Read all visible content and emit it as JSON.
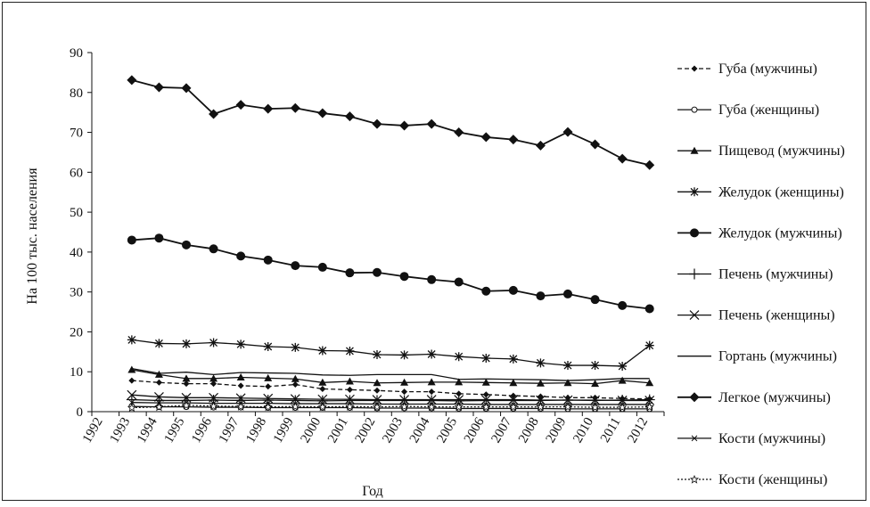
{
  "chart_data": {
    "type": "line",
    "xlabel": "Год",
    "ylabel": "На 100 тыс. населения",
    "ylim": [
      0,
      90
    ],
    "yticks": [
      0,
      10,
      20,
      30,
      40,
      50,
      60,
      70,
      80,
      90
    ],
    "xticks": [
      "1992",
      "1993",
      "1994",
      "1995",
      "1996",
      "1997",
      "1998",
      "1999",
      "2000",
      "2001",
      "2002",
      "2003",
      "2004",
      "2005",
      "2006",
      "2007",
      "2008",
      "2009",
      "2010",
      "2011",
      "2012"
    ],
    "x": [
      1993,
      1994,
      1995,
      1996,
      1997,
      1998,
      1999,
      2000,
      2001,
      2002,
      2003,
      2004,
      2005,
      2006,
      2007,
      2008,
      2009,
      2010,
      2011,
      2012
    ],
    "grid": false,
    "legend_position": "right",
    "series": [
      {
        "name": "Губа (мужчины)",
        "marker": "diamond-small",
        "dash": "dashed",
        "values": [
          7.8,
          7.3,
          7.0,
          7.0,
          6.5,
          6.3,
          6.8,
          5.7,
          5.5,
          5.3,
          5.0,
          5.0,
          4.5,
          4.3,
          4.0,
          3.8,
          3.5,
          3.5,
          3.3,
          3.2
        ]
      },
      {
        "name": "Губа (женщины)",
        "marker": "circle-open",
        "dash": "solid",
        "values": [
          1.3,
          1.2,
          1.2,
          1.1,
          1.1,
          1.0,
          1.0,
          1.0,
          1.0,
          0.9,
          0.9,
          0.9,
          0.8,
          0.8,
          0.8,
          0.8,
          0.7,
          0.7,
          0.7,
          0.7
        ]
      },
      {
        "name": "Пищевод (мужчины)",
        "marker": "triangle",
        "dash": "solid",
        "values": [
          10.5,
          9.3,
          8.3,
          8.3,
          8.6,
          8.4,
          8.2,
          7.3,
          7.6,
          7.2,
          7.3,
          7.4,
          7.4,
          7.3,
          7.2,
          7.1,
          7.2,
          7.0,
          7.8,
          7.2
        ]
      },
      {
        "name": "Желудок (женщины)",
        "marker": "star",
        "dash": "solid",
        "values": [
          18.0,
          17.1,
          17.0,
          17.3,
          16.9,
          16.3,
          16.1,
          15.3,
          15.2,
          14.3,
          14.2,
          14.4,
          13.8,
          13.4,
          13.2,
          12.2,
          11.6,
          11.6,
          11.4,
          16.6
        ]
      },
      {
        "name": "Желудок (мужчины)",
        "marker": "circle-filled",
        "dash": "solid",
        "values": [
          43.0,
          43.5,
          41.8,
          40.8,
          39.0,
          38.0,
          36.6,
          36.2,
          34.8,
          34.9,
          33.9,
          33.1,
          32.5,
          30.2,
          30.4,
          29.0,
          29.5,
          28.1,
          26.6,
          25.8
        ]
      },
      {
        "name": "Печень (мужчины)",
        "marker": "plus",
        "dash": "solid",
        "values": [
          3.0,
          2.8,
          2.8,
          2.9,
          2.8,
          2.9,
          2.8,
          2.7,
          2.8,
          2.8,
          2.8,
          2.8,
          2.7,
          2.8,
          2.8,
          2.8,
          2.9,
          2.8,
          2.9,
          3.0
        ]
      },
      {
        "name": "Печень (женщины)",
        "marker": "cross",
        "dash": "solid",
        "values": [
          4.2,
          3.7,
          3.5,
          3.5,
          3.4,
          3.3,
          3.2,
          3.1,
          3.1,
          3.0,
          3.0,
          3.0,
          3.0,
          3.0,
          3.0,
          2.9,
          2.9,
          2.9,
          2.8,
          2.8
        ]
      },
      {
        "name": "Гортань (мужчины)",
        "marker": "none",
        "dash": "solid",
        "values": [
          10.8,
          9.6,
          9.9,
          9.3,
          9.8,
          9.7,
          9.6,
          9.2,
          9.1,
          9.3,
          9.3,
          9.3,
          8.1,
          8.2,
          8.1,
          8.0,
          7.8,
          8.0,
          8.3,
          8.3
        ]
      },
      {
        "name": "Легкое (мужчины)",
        "marker": "diamond",
        "dash": "solid",
        "values": [
          83.1,
          81.3,
          81.1,
          74.6,
          76.9,
          75.9,
          76.1,
          74.8,
          74.0,
          72.1,
          71.7,
          72.1,
          70.0,
          68.8,
          68.2,
          66.7,
          70.1,
          67.0,
          63.4,
          61.8
        ]
      },
      {
        "name": "Кости (мужчины)",
        "marker": "x-small",
        "dash": "solid",
        "values": [
          2.3,
          2.2,
          2.2,
          2.1,
          2.1,
          2.1,
          2.0,
          2.0,
          2.0,
          1.9,
          1.9,
          1.9,
          1.9,
          1.8,
          1.8,
          1.8,
          1.8,
          1.8,
          1.8,
          1.8
        ]
      },
      {
        "name": "Кости (женщины)",
        "marker": "star-open",
        "dash": "dotted",
        "values": [
          1.0,
          1.2,
          1.6,
          1.4,
          1.3,
          1.2,
          1.3,
          1.2,
          1.3,
          1.2,
          1.3,
          1.2,
          1.2,
          1.2,
          1.2,
          1.2,
          1.2,
          1.1,
          1.1,
          1.2
        ]
      }
    ]
  }
}
